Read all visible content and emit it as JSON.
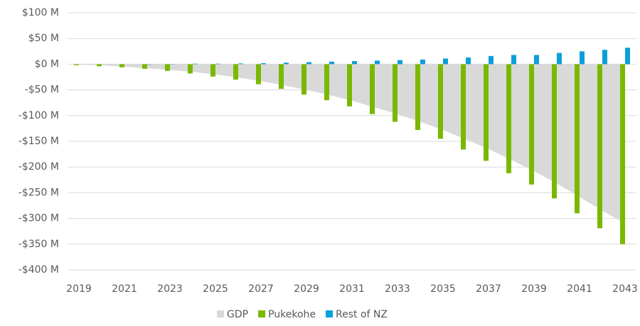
{
  "chart_data": {
    "type": "bar",
    "categories": [
      "2019",
      null,
      "2021",
      null,
      "2023",
      null,
      "2025",
      null,
      "2027",
      null,
      "2029",
      null,
      "2031",
      null,
      "2033",
      null,
      "2035",
      null,
      "2037",
      null,
      "2039",
      null,
      "2041",
      null,
      "2043"
    ],
    "series": [
      {
        "name": "GDP",
        "type": "area",
        "color": "#d9d9d9",
        "values": [
          -1,
          -2,
          -5,
          -8,
          -11,
          -15,
          -20,
          -26,
          -33,
          -41,
          -50,
          -60,
          -71,
          -84,
          -97,
          -112,
          -128,
          -146,
          -165,
          -186,
          -208,
          -232,
          -258,
          -285,
          -310
        ]
      },
      {
        "name": "Pukekohe",
        "type": "bar",
        "color": "#7ab800",
        "values": [
          -2,
          -4,
          -6,
          -9,
          -13,
          -18,
          -24,
          -30,
          -39,
          -48,
          -59,
          -70,
          -82,
          -97,
          -112,
          -128,
          -145,
          -166,
          -188,
          -212,
          -234,
          -261,
          -290,
          -319,
          -350
        ]
      },
      {
        "name": "Rest of NZ",
        "type": "bar",
        "color": "#0aa0d8",
        "values": [
          0,
          0,
          0,
          0.5,
          0.5,
          1,
          1,
          1.5,
          2,
          3,
          4,
          5,
          6,
          7,
          8,
          9,
          11,
          13,
          16,
          18,
          18,
          22,
          25,
          28,
          32
        ]
      }
    ],
    "ylim": [
      -400,
      100
    ],
    "yticks": [
      {
        "value": -400,
        "label": "-$400 M"
      },
      {
        "value": -350,
        "label": "-$350 M"
      },
      {
        "value": -300,
        "label": "-$300 M"
      },
      {
        "value": -250,
        "label": "-$250 M"
      },
      {
        "value": -200,
        "label": "-$200 M"
      },
      {
        "value": -150,
        "label": "-$150 M"
      },
      {
        "value": -100,
        "label": "-$100 M"
      },
      {
        "value": -50,
        "label": "-$50 M"
      },
      {
        "value": 0,
        "label": "$0 M"
      },
      {
        "value": 50,
        "label": "$50 M"
      },
      {
        "value": 100,
        "label": "$100 M"
      }
    ],
    "grid": true,
    "legend": "bottom"
  }
}
